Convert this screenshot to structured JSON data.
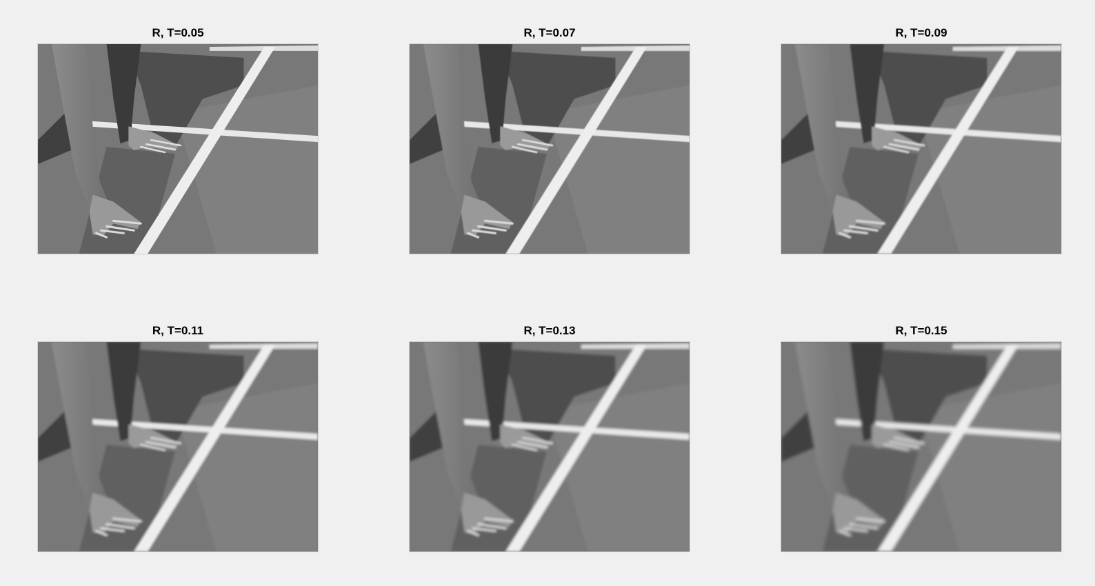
{
  "figure": {
    "background": "#f0f0f0",
    "image_colormap": "gray",
    "subplots": [
      {
        "title": "R, T=0.05",
        "blur": 0.0
      },
      {
        "title": "R, T=0.07",
        "blur": 0.6
      },
      {
        "title": "R, T=0.09",
        "blur": 1.1
      },
      {
        "title": "R, T=0.11",
        "blur": 1.6
      },
      {
        "title": "R, T=0.13",
        "blur": 2.0
      },
      {
        "title": "R, T=0.15",
        "blur": 2.4
      }
    ]
  }
}
